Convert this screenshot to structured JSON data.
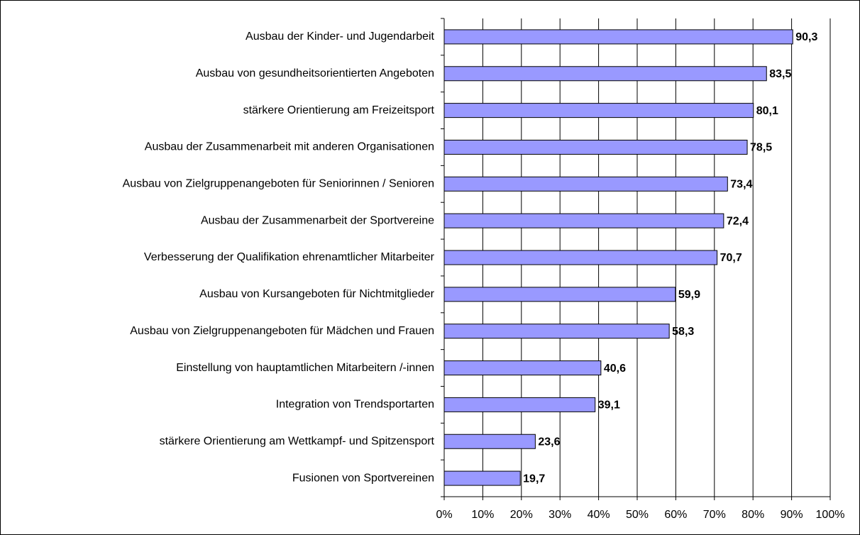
{
  "chart_data": {
    "type": "bar",
    "orientation": "horizontal",
    "categories": [
      "Ausbau der Kinder- und Jugendarbeit",
      "Ausbau von gesundheitsorientierten Angeboten",
      "stärkere Orientierung am Freizeitsport",
      "Ausbau der Zusammenarbeit mit anderen Organisationen",
      "Ausbau von Zielgruppenangeboten für Seniorinnen / Senioren",
      "Ausbau der Zusammenarbeit der Sportvereine",
      "Verbesserung der Qualifikation ehrenamtlicher Mitarbeiter",
      "Ausbau von Kursangeboten für Nichtmitglieder",
      "Ausbau von Zielgruppenangeboten für Mädchen und Frauen",
      "Einstellung von hauptamtlichen Mitarbeitern /-innen",
      "Integration von Trendsportarten",
      "stärkere Orientierung am Wettkampf- und Spitzensport",
      "Fusionen von Sportvereinen"
    ],
    "values": [
      90.3,
      83.5,
      80.1,
      78.5,
      73.4,
      72.4,
      70.7,
      59.9,
      58.3,
      40.6,
      39.1,
      23.6,
      19.7
    ],
    "value_labels": [
      "90,3",
      "83,5",
      "80,1",
      "78,5",
      "73,4",
      "72,4",
      "70,7",
      "59,9",
      "58,3",
      "40,6",
      "39,1",
      "23,6",
      "19,7"
    ],
    "color": "#9999ff",
    "xlim": [
      0,
      100
    ],
    "xticks": [
      {
        "value": 0,
        "label": "0%"
      },
      {
        "value": 10,
        "label": "10%"
      },
      {
        "value": 20,
        "label": "20%"
      },
      {
        "value": 30,
        "label": "30%"
      },
      {
        "value": 40,
        "label": "40%"
      },
      {
        "value": 50,
        "label": "50%"
      },
      {
        "value": 60,
        "label": "60%"
      },
      {
        "value": 70,
        "label": "70%"
      },
      {
        "value": 80,
        "label": "80%"
      },
      {
        "value": 90,
        "label": "90%"
      },
      {
        "value": 100,
        "label": "100%"
      }
    ],
    "grid": true
  }
}
